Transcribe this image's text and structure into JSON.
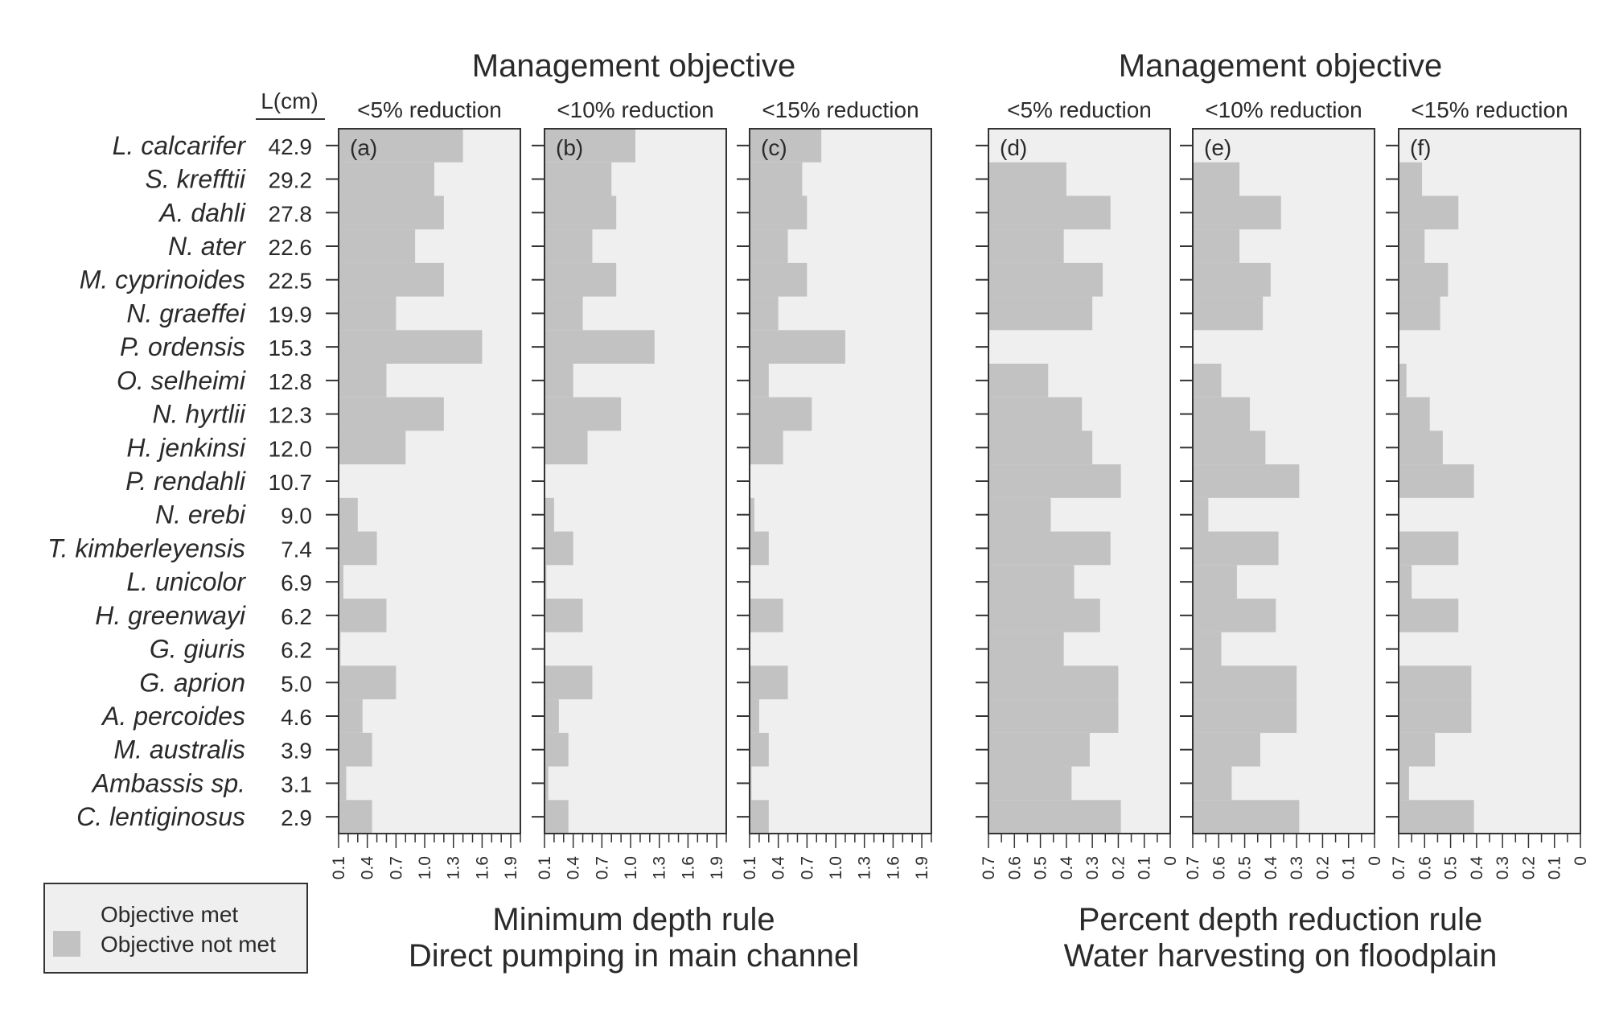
{
  "chart_data": {
    "type": "bar",
    "orientation": "horizontal",
    "group_titles": [
      "Management objective",
      "Management objective"
    ],
    "length_header": "L(cm)",
    "species": [
      "L. calcarifer",
      "S. krefftii",
      "A. dahli",
      "N. ater",
      "M. cyprinoides",
      "N. graeffei",
      "P. ordensis",
      "O. selheimi",
      "N. hyrtlii",
      "H. jenkinsi",
      "P. rendahli",
      "N. erebi",
      "T. kimberleyensis",
      "L. unicolor",
      "H. greenwayi",
      "G. giuris",
      "G. aprion",
      "A. percoides",
      "M. australis",
      "Ambassis sp.",
      "C. lentiginosus"
    ],
    "lengths": [
      "42.9",
      "29.2",
      "27.8",
      "22.6",
      "22.5",
      "19.9",
      "15.3",
      "12.8",
      "12.3",
      "12.0",
      "10.7",
      "9.0",
      "7.4",
      "6.9",
      "6.2",
      "6.2",
      "5.0",
      "4.6",
      "3.9",
      "3.1",
      "2.9"
    ],
    "panels": [
      {
        "label": "(a)",
        "objective": "<5% reduction",
        "rule": "min",
        "xlim": [
          0.1,
          2.0
        ],
        "values": [
          1.4,
          1.1,
          1.2,
          0.9,
          1.2,
          0.7,
          1.6,
          0.6,
          1.2,
          0.8,
          null,
          0.3,
          0.5,
          0.15,
          0.6,
          0.12,
          0.7,
          0.35,
          0.45,
          0.18,
          0.45
        ]
      },
      {
        "label": "(b)",
        "objective": "<10% reduction",
        "rule": "min",
        "xlim": [
          0.1,
          2.0
        ],
        "values": [
          1.05,
          0.8,
          0.85,
          0.6,
          0.85,
          0.5,
          1.25,
          0.4,
          0.9,
          0.55,
          null,
          0.2,
          0.4,
          0.12,
          0.5,
          0.11,
          0.6,
          0.25,
          0.35,
          0.14,
          0.35
        ]
      },
      {
        "label": "(c)",
        "objective": "<15% reduction",
        "rule": "min",
        "xlim": [
          0.1,
          2.0
        ],
        "values": [
          0.85,
          0.65,
          0.7,
          0.5,
          0.7,
          0.4,
          1.1,
          0.3,
          0.75,
          0.45,
          null,
          0.15,
          0.3,
          0.11,
          0.45,
          0.1,
          0.5,
          0.2,
          0.3,
          0.12,
          0.3
        ]
      },
      {
        "label": "(d)",
        "objective": "<5% reduction",
        "rule": "pct",
        "xlim": [
          0.7,
          0.0
        ],
        "values": [
          null,
          0.4,
          0.23,
          0.41,
          0.26,
          0.3,
          null,
          0.47,
          0.34,
          0.3,
          0.19,
          0.46,
          0.23,
          0.37,
          0.27,
          0.41,
          0.2,
          0.2,
          0.31,
          0.38,
          0.19
        ]
      },
      {
        "label": "(e)",
        "objective": "<10% reduction",
        "rule": "pct",
        "xlim": [
          0.7,
          0.0
        ],
        "values": [
          null,
          0.52,
          0.36,
          0.52,
          0.4,
          0.43,
          null,
          0.59,
          0.48,
          0.42,
          0.29,
          0.64,
          0.37,
          0.53,
          0.38,
          0.59,
          0.3,
          0.3,
          0.44,
          0.55,
          0.29
        ]
      },
      {
        "label": "(f)",
        "objective": "<15% reduction",
        "rule": "pct",
        "xlim": [
          0.7,
          0.0
        ],
        "values": [
          null,
          0.61,
          0.47,
          0.6,
          0.51,
          0.54,
          null,
          0.67,
          0.58,
          0.53,
          0.41,
          null,
          0.47,
          0.65,
          0.47,
          null,
          0.42,
          0.42,
          0.56,
          0.66,
          0.41
        ]
      }
    ],
    "xticks_min": [
      "0.1",
      "0.4",
      "0.7",
      "1.0",
      "1.3",
      "1.6",
      "1.9"
    ],
    "xticks_pct": [
      "0.7",
      "0.6",
      "0.5",
      "0.4",
      "0.3",
      "0.2",
      "0.1",
      "0"
    ],
    "xlabel_left": [
      "Minimum depth rule",
      "Direct pumping in main channel"
    ],
    "xlabel_right": [
      "Percent depth reduction rule",
      "Water harvesting on floodplain"
    ],
    "legend": [
      {
        "label": "Objective met",
        "color": "#efefef"
      },
      {
        "label": "Objective not met",
        "color": "#c2c2c2"
      }
    ],
    "colors": {
      "bar": "#c2c2c2",
      "panel_bg": "#efefef",
      "frame": "#333333"
    }
  }
}
